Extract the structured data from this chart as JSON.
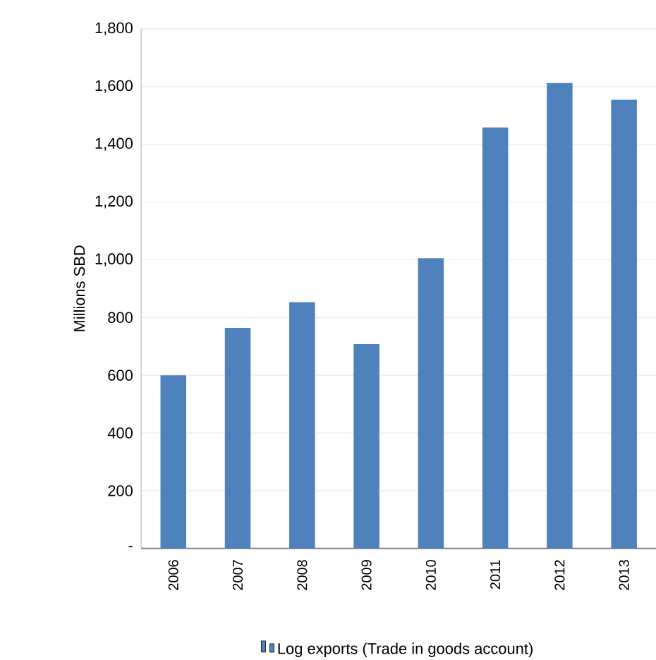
{
  "chart_data": {
    "type": "bar",
    "ylabel": "Millions  SBD",
    "categories": [
      "2006",
      "2007",
      "2008",
      "2009",
      "2010",
      "2011",
      "2012",
      "2013"
    ],
    "series": [
      {
        "name": "Log exports (Trade in goods account)",
        "color": "#4f81bd",
        "values": [
          600,
          764,
          853,
          708,
          1005,
          1458,
          1612,
          1554
        ]
      }
    ],
    "ylim": [
      0,
      1800
    ],
    "yticks": [
      {
        "value": 0,
        "label": "-"
      },
      {
        "value": 200,
        "label": "200"
      },
      {
        "value": 400,
        "label": "400"
      },
      {
        "value": 600,
        "label": "600"
      },
      {
        "value": 800,
        "label": "800"
      },
      {
        "value": 1000,
        "label": "1,000"
      },
      {
        "value": 1200,
        "label": "1,200"
      },
      {
        "value": 1400,
        "label": "1,400"
      },
      {
        "value": 1600,
        "label": "1,600"
      },
      {
        "value": 1800,
        "label": "1,800"
      }
    ],
    "grid": "y",
    "legend": "bottom"
  }
}
